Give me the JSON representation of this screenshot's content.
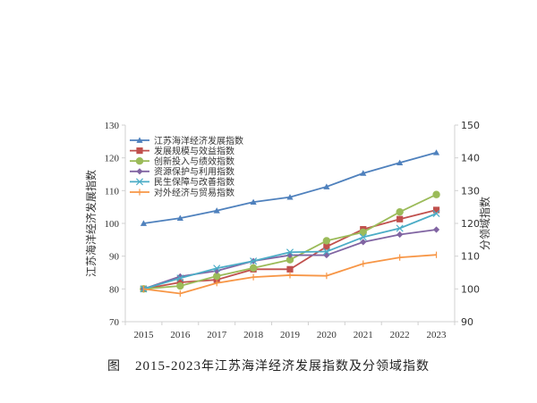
{
  "chart_data": {
    "type": "line",
    "title": "",
    "caption": {
      "prefix": "图",
      "years": "2015-2023",
      "text": "年江苏海洋经济发展指数及分领域指数"
    },
    "categories": [
      "2015",
      "2016",
      "2017",
      "2018",
      "2019",
      "2020",
      "2021",
      "2022",
      "2023"
    ],
    "left_axis": {
      "label": "江苏海洋经济发展指数",
      "ylim": [
        70,
        130
      ],
      "ticks": [
        "70",
        "80",
        "90",
        "100",
        "110",
        "120",
        "130"
      ]
    },
    "right_axis": {
      "label": "分领域指数",
      "ylim": [
        90,
        150
      ],
      "ticks": [
        "90",
        "100",
        "110",
        "120",
        "130",
        "140",
        "150"
      ]
    },
    "grid": false,
    "legend": "top-left",
    "series": [
      {
        "name": "江苏海洋经济发展指数",
        "axis": "left",
        "color": "#4F81BD",
        "marker": "triangle",
        "values": [
          100.0,
          101.6,
          103.9,
          106.5,
          108.0,
          111.2,
          115.3,
          118.5,
          121.6
        ]
      },
      {
        "name": "发展规模与效益指数",
        "axis": "right",
        "color": "#C0504D",
        "marker": "square",
        "values": [
          100.0,
          102.0,
          102.8,
          106.0,
          106.0,
          112.9,
          118.2,
          121.3,
          124.1
        ]
      },
      {
        "name": "创新投入与绩效指数",
        "axis": "right",
        "color": "#9BBB59",
        "marker": "circle",
        "values": [
          100.0,
          100.9,
          103.9,
          106.4,
          108.9,
          114.7,
          117.3,
          123.5,
          128.8
        ]
      },
      {
        "name": "资源保护与利用指数",
        "axis": "right",
        "color": "#8064A2",
        "marker": "diamond",
        "values": [
          100.0,
          103.8,
          105.5,
          108.5,
          110.3,
          110.3,
          114.3,
          116.6,
          118.1
        ]
      },
      {
        "name": "民生保障与改善指数",
        "axis": "right",
        "color": "#4BACC6",
        "marker": "x",
        "values": [
          100.0,
          103.3,
          106.3,
          108.5,
          111.2,
          111.4,
          115.8,
          118.5,
          123.0
        ]
      },
      {
        "name": "对外经济与贸易指数",
        "axis": "right",
        "color": "#F79646",
        "marker": "plus",
        "values": [
          100.0,
          98.6,
          101.8,
          103.6,
          104.2,
          104.0,
          107.7,
          109.6,
          110.4
        ]
      }
    ]
  }
}
